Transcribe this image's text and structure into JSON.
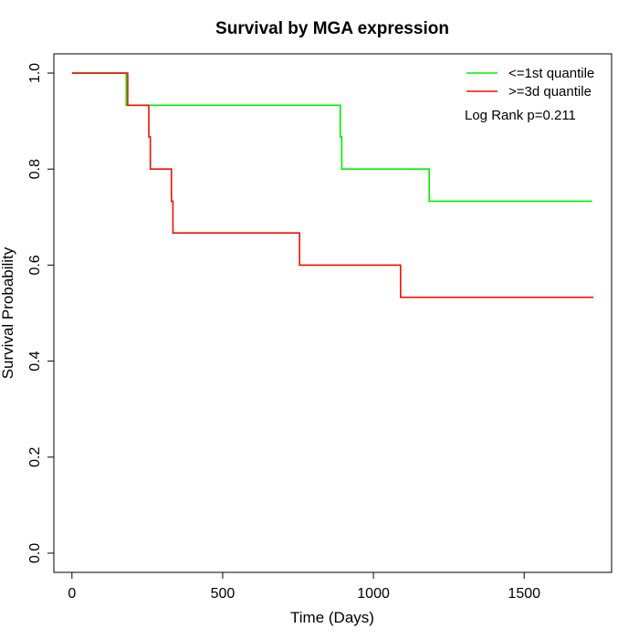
{
  "chart_data": {
    "type": "line",
    "title": "Survival by MGA expression",
    "xlabel": "Time (Days)",
    "ylabel": "Survival Probability",
    "xlim": [
      -60,
      1790
    ],
    "ylim": [
      -0.04,
      1.04
    ],
    "x_ticks": [
      0,
      500,
      1000,
      1500
    ],
    "y_ticks": [
      0.0,
      0.2,
      0.4,
      0.6,
      0.8,
      1.0
    ],
    "x_tick_labels": [
      "0",
      "500",
      "1000",
      "1500"
    ],
    "y_tick_labels": [
      "0.0",
      "0.2",
      "0.4",
      "0.6",
      "0.8",
      "1.0"
    ],
    "grid": false,
    "legend_position": "top-right",
    "annotation": "Log Rank p=0.211",
    "series": [
      {
        "name": "<=1st quantile",
        "color": "#00ee00",
        "step": true,
        "x": [
          0,
          180,
          890,
          895,
          1185,
          1725
        ],
        "y": [
          1.0,
          0.933,
          0.867,
          0.8,
          0.733,
          0.733
        ]
      },
      {
        "name": ">=3d quantile",
        "color": "#ee1100",
        "step": true,
        "x": [
          0,
          185,
          255,
          260,
          330,
          335,
          755,
          1090,
          1730
        ],
        "y": [
          1.0,
          0.933,
          0.867,
          0.8,
          0.733,
          0.667,
          0.6,
          0.533,
          0.533
        ]
      }
    ]
  }
}
